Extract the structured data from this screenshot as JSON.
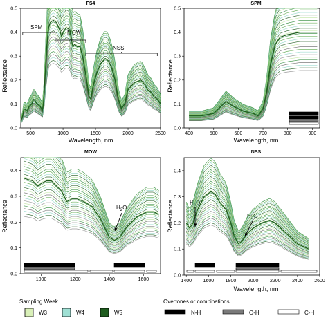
{
  "chart_data": [
    {
      "type": "line",
      "title": "FS4",
      "xlabel": "Wavelength, nm",
      "ylabel": "Reflectance",
      "xlim": [
        350,
        2500
      ],
      "ylim": [
        0,
        0.5
      ],
      "xticks": [
        500,
        1000,
        1500,
        2000,
        2500
      ],
      "yticks": [
        0,
        0.1,
        0.2,
        0.3,
        0.4,
        0.5
      ],
      "curve": [
        [
          350,
          0.03
        ],
        [
          380,
          0.05
        ],
        [
          400,
          0.08
        ],
        [
          450,
          0.07
        ],
        [
          480,
          0.09
        ],
        [
          520,
          0.1
        ],
        [
          550,
          0.12
        ],
        [
          600,
          0.1
        ],
        [
          650,
          0.09
        ],
        [
          680,
          0.07
        ],
        [
          700,
          0.1
        ],
        [
          720,
          0.2
        ],
        [
          750,
          0.34
        ],
        [
          780,
          0.42
        ],
        [
          800,
          0.44
        ],
        [
          850,
          0.45
        ],
        [
          900,
          0.44
        ],
        [
          950,
          0.41
        ],
        [
          980,
          0.38
        ],
        [
          1000,
          0.4
        ],
        [
          1050,
          0.42
        ],
        [
          1100,
          0.41
        ],
        [
          1150,
          0.34
        ],
        [
          1180,
          0.35
        ],
        [
          1220,
          0.34
        ],
        [
          1260,
          0.34
        ],
        [
          1300,
          0.3
        ],
        [
          1350,
          0.22
        ],
        [
          1400,
          0.13
        ],
        [
          1430,
          0.12
        ],
        [
          1460,
          0.17
        ],
        [
          1520,
          0.23
        ],
        [
          1580,
          0.27
        ],
        [
          1650,
          0.29
        ],
        [
          1700,
          0.28
        ],
        [
          1750,
          0.25
        ],
        [
          1800,
          0.2
        ],
        [
          1850,
          0.12
        ],
        [
          1900,
          0.08
        ],
        [
          1950,
          0.1
        ],
        [
          2000,
          0.16
        ],
        [
          2100,
          0.19
        ],
        [
          2200,
          0.2
        ],
        [
          2260,
          0.18
        ],
        [
          2300,
          0.16
        ],
        [
          2350,
          0.15
        ],
        [
          2400,
          0.13
        ],
        [
          2450,
          0.12
        ],
        [
          2500,
          0.1
        ]
      ],
      "annotations": [
        {
          "label": "SPM",
          "from": 380,
          "to": 880
        },
        {
          "label": "MOW",
          "from": 880,
          "to": 1350
        },
        {
          "label": "NSS",
          "from": 1350,
          "to": 2450
        }
      ]
    },
    {
      "type": "line",
      "title": "SPM",
      "xlabel": "Wavelength, nm",
      "ylabel": "Reflectance",
      "xlim": [
        380,
        930
      ],
      "ylim": [
        0,
        0.5
      ],
      "xticks": [
        400,
        500,
        600,
        700,
        800,
        900
      ],
      "yticks": [
        0,
        0.1,
        0.2,
        0.3,
        0.4,
        0.5
      ],
      "curve": [
        [
          400,
          0.05
        ],
        [
          450,
          0.05
        ],
        [
          500,
          0.06
        ],
        [
          520,
          0.08
        ],
        [
          550,
          0.11
        ],
        [
          580,
          0.09
        ],
        [
          620,
          0.07
        ],
        [
          660,
          0.06
        ],
        [
          680,
          0.05
        ],
        [
          700,
          0.08
        ],
        [
          715,
          0.15
        ],
        [
          730,
          0.26
        ],
        [
          750,
          0.35
        ],
        [
          770,
          0.38
        ],
        [
          800,
          0.39
        ],
        [
          850,
          0.4
        ],
        [
          900,
          0.4
        ],
        [
          920,
          0.4
        ]
      ]
    },
    {
      "type": "line",
      "title": "MOW",
      "xlabel": "",
      "ylabel": "Reflectance",
      "xlim": [
        880,
        1700
      ],
      "ylim": [
        0,
        0.45
      ],
      "xticks": [
        1000,
        1200,
        1400,
        1600
      ],
      "yticks": [
        0,
        0.1,
        0.2,
        0.3,
        0.4
      ],
      "curve": [
        [
          900,
          0.37
        ],
        [
          950,
          0.36
        ],
        [
          980,
          0.34
        ],
        [
          1000,
          0.35
        ],
        [
          1030,
          0.36
        ],
        [
          1060,
          0.36
        ],
        [
          1090,
          0.34
        ],
        [
          1120,
          0.32
        ],
        [
          1150,
          0.28
        ],
        [
          1180,
          0.29
        ],
        [
          1210,
          0.29
        ],
        [
          1250,
          0.28
        ],
        [
          1300,
          0.26
        ],
        [
          1350,
          0.21
        ],
        [
          1400,
          0.14
        ],
        [
          1430,
          0.13
        ],
        [
          1460,
          0.14
        ],
        [
          1500,
          0.18
        ],
        [
          1560,
          0.22
        ],
        [
          1620,
          0.24
        ],
        [
          1660,
          0.24
        ],
        [
          1690,
          0.23
        ]
      ],
      "annotations": [
        {
          "label": "H",
          "sub": "2",
          "after": "O"
        }
      ]
    },
    {
      "type": "line",
      "title": "NSS",
      "xlabel": "Wavelength, nm",
      "ylabel": "Reflectance",
      "xlim": [
        1380,
        2600
      ],
      "ylim": [
        0,
        0.45
      ],
      "xticks": [
        1400,
        1600,
        1800,
        2000,
        2200,
        2400,
        2600
      ],
      "yticks": [
        0,
        0.1,
        0.2,
        0.3,
        0.4
      ],
      "curve": [
        [
          1400,
          0.2
        ],
        [
          1430,
          0.18
        ],
        [
          1460,
          0.2
        ],
        [
          1500,
          0.25
        ],
        [
          1560,
          0.3
        ],
        [
          1620,
          0.32
        ],
        [
          1660,
          0.31
        ],
        [
          1700,
          0.28
        ],
        [
          1760,
          0.25
        ],
        [
          1800,
          0.2
        ],
        [
          1830,
          0.15
        ],
        [
          1870,
          0.12
        ],
        [
          1900,
          0.13
        ],
        [
          1950,
          0.16
        ],
        [
          2000,
          0.18
        ],
        [
          2080,
          0.2
        ],
        [
          2150,
          0.21
        ],
        [
          2200,
          0.2
        ],
        [
          2250,
          0.18
        ],
        [
          2300,
          0.16
        ],
        [
          2350,
          0.14
        ],
        [
          2400,
          0.12
        ],
        [
          2450,
          0.11
        ],
        [
          2500,
          0.1
        ]
      ],
      "annotations": [
        {
          "label": "H",
          "sub": "2",
          "after": "O"
        },
        {
          "label": "H",
          "sub": "2",
          "after": "O"
        }
      ]
    }
  ],
  "legend_weeks": {
    "title": "Sampling Week",
    "items": [
      {
        "label": "W3",
        "color": "#d9f0b8"
      },
      {
        "label": "W4",
        "color": "#9fe0d4"
      },
      {
        "label": "W5",
        "color": "#1e5c1e"
      }
    ]
  },
  "legend_bonds": {
    "title": "Overtones or combinations",
    "items": [
      {
        "label": "N-H",
        "color": "#000000"
      },
      {
        "label": "O-H",
        "color": "#7a7a7a"
      },
      {
        "label": "C-H",
        "color": "#ffffff"
      }
    ]
  }
}
